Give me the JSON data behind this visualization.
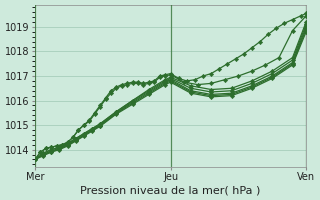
{
  "bg_color": "#ceeadc",
  "grid_color": "#a0c8b4",
  "line_color": "#2d6e2d",
  "marker_color": "#2d6e2d",
  "xlabel": "Pression niveau de la mer( hPa )",
  "xlabel_fontsize": 8,
  "yticks": [
    1014,
    1015,
    1016,
    1017,
    1018,
    1019
  ],
  "xtick_labels": [
    "Mer",
    "Jeu",
    "Ven"
  ],
  "ylim": [
    1013.3,
    1019.9
  ],
  "xlim_days": [
    0,
    2.0
  ],
  "vline_days": [
    0.0,
    1.0,
    2.0
  ],
  "series": [
    {
      "x": [
        0.0,
        0.04,
        0.08,
        0.12,
        0.16,
        0.2,
        0.24,
        0.28,
        0.32,
        0.36,
        0.4,
        0.44,
        0.48,
        0.52,
        0.56,
        0.6,
        0.64,
        0.68,
        0.72,
        0.76,
        0.8,
        0.84,
        0.88,
        0.92,
        0.96,
        1.0,
        1.06,
        1.12,
        1.18,
        1.24,
        1.3,
        1.36,
        1.42,
        1.48,
        1.54,
        1.6,
        1.66,
        1.72,
        1.78,
        1.84,
        1.9,
        1.96,
        2.0
      ],
      "y": [
        1013.6,
        1013.9,
        1014.05,
        1014.1,
        1014.15,
        1014.2,
        1014.3,
        1014.5,
        1014.8,
        1015.0,
        1015.2,
        1015.5,
        1015.8,
        1016.1,
        1016.4,
        1016.55,
        1016.65,
        1016.7,
        1016.75,
        1016.75,
        1016.7,
        1016.75,
        1016.8,
        1017.0,
        1017.05,
        1017.1,
        1016.9,
        1016.8,
        1016.85,
        1017.0,
        1017.1,
        1017.3,
        1017.5,
        1017.7,
        1017.9,
        1018.15,
        1018.4,
        1018.7,
        1018.95,
        1019.15,
        1019.3,
        1019.45,
        1019.55
      ]
    },
    {
      "x": [
        0.0,
        0.04,
        0.08,
        0.12,
        0.16,
        0.2,
        0.24,
        0.28,
        0.32,
        0.36,
        0.4,
        0.44,
        0.48,
        0.52,
        0.56,
        0.6,
        0.64,
        0.68,
        0.72,
        0.76,
        0.8,
        0.84,
        0.88,
        0.92,
        0.96,
        1.0,
        1.1,
        1.2,
        1.3,
        1.4,
        1.5,
        1.6,
        1.7,
        1.8,
        1.9,
        2.0
      ],
      "y": [
        1013.6,
        1013.9,
        1014.05,
        1014.1,
        1014.15,
        1014.2,
        1014.3,
        1014.5,
        1014.8,
        1015.0,
        1015.15,
        1015.45,
        1015.75,
        1016.05,
        1016.3,
        1016.5,
        1016.6,
        1016.65,
        1016.7,
        1016.7,
        1016.65,
        1016.7,
        1016.75,
        1016.95,
        1017.0,
        1017.05,
        1016.75,
        1016.65,
        1016.7,
        1016.85,
        1017.0,
        1017.2,
        1017.45,
        1017.75,
        1018.85,
        1019.45
      ]
    },
    {
      "x": [
        0.0,
        0.06,
        0.12,
        0.18,
        0.24,
        0.3,
        0.36,
        0.42,
        0.48,
        0.6,
        0.72,
        0.84,
        0.96,
        1.0,
        1.15,
        1.3,
        1.45,
        1.6,
        1.75,
        1.9,
        2.0
      ],
      "y": [
        1013.6,
        1013.85,
        1014.0,
        1014.1,
        1014.25,
        1014.45,
        1014.65,
        1014.85,
        1015.05,
        1015.55,
        1016.0,
        1016.45,
        1016.85,
        1016.95,
        1016.6,
        1016.45,
        1016.5,
        1016.8,
        1017.2,
        1017.75,
        1019.2
      ]
    },
    {
      "x": [
        0.0,
        0.06,
        0.12,
        0.18,
        0.24,
        0.3,
        0.36,
        0.42,
        0.48,
        0.6,
        0.72,
        0.84,
        0.96,
        1.0,
        1.15,
        1.3,
        1.45,
        1.6,
        1.75,
        1.9,
        2.0
      ],
      "y": [
        1013.6,
        1013.85,
        1014.0,
        1014.1,
        1014.25,
        1014.45,
        1014.65,
        1014.85,
        1015.05,
        1015.55,
        1016.0,
        1016.4,
        1016.8,
        1016.9,
        1016.5,
        1016.35,
        1016.4,
        1016.7,
        1017.1,
        1017.65,
        1019.1
      ]
    },
    {
      "x": [
        0.0,
        0.06,
        0.12,
        0.18,
        0.24,
        0.3,
        0.36,
        0.42,
        0.48,
        0.6,
        0.72,
        0.84,
        0.96,
        1.0,
        1.15,
        1.3,
        1.45,
        1.6,
        1.75,
        1.9,
        2.0
      ],
      "y": [
        1013.6,
        1013.8,
        1013.95,
        1014.05,
        1014.2,
        1014.4,
        1014.6,
        1014.8,
        1015.0,
        1015.5,
        1015.95,
        1016.35,
        1016.75,
        1016.85,
        1016.4,
        1016.25,
        1016.3,
        1016.6,
        1017.0,
        1017.55,
        1019.0
      ]
    },
    {
      "x": [
        0.0,
        0.06,
        0.12,
        0.18,
        0.24,
        0.3,
        0.36,
        0.42,
        0.48,
        0.6,
        0.72,
        0.84,
        0.96,
        1.0,
        1.15,
        1.3,
        1.45,
        1.6,
        1.75,
        1.9,
        2.0
      ],
      "y": [
        1013.6,
        1013.78,
        1013.92,
        1014.02,
        1014.18,
        1014.38,
        1014.58,
        1014.78,
        1014.98,
        1015.48,
        1015.9,
        1016.3,
        1016.7,
        1016.8,
        1016.35,
        1016.2,
        1016.25,
        1016.55,
        1016.95,
        1017.5,
        1018.9
      ]
    },
    {
      "x": [
        0.0,
        0.06,
        0.12,
        0.18,
        0.24,
        0.3,
        0.36,
        0.42,
        0.48,
        0.6,
        0.72,
        0.84,
        0.96,
        1.0,
        1.15,
        1.3,
        1.45,
        1.6,
        1.75,
        1.9,
        2.0
      ],
      "y": [
        1013.6,
        1013.75,
        1013.9,
        1014.0,
        1014.15,
        1014.35,
        1014.55,
        1014.75,
        1014.95,
        1015.45,
        1015.85,
        1016.25,
        1016.65,
        1016.75,
        1016.3,
        1016.15,
        1016.2,
        1016.5,
        1016.9,
        1017.45,
        1018.8
      ]
    }
  ]
}
